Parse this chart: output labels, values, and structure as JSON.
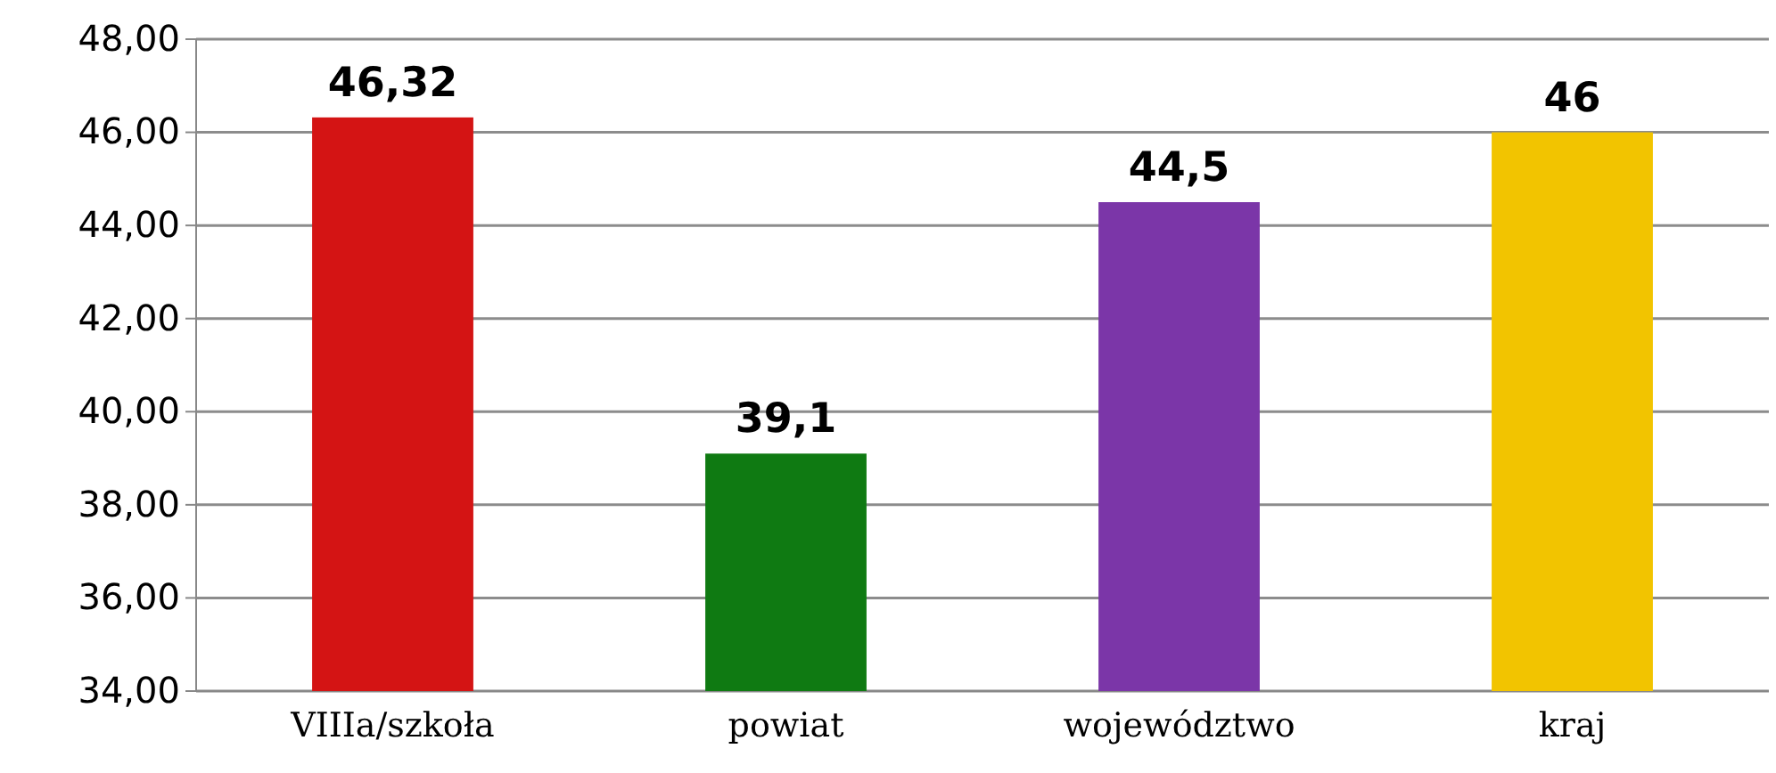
{
  "chart_data": {
    "type": "bar",
    "categories": [
      "VIIIa/szkoła",
      "powiat",
      "województwo",
      "kraj"
    ],
    "values": [
      46.32,
      39.1,
      44.5,
      46
    ],
    "colors": [
      "#d41414",
      "#0f7a12",
      "#7b36a8",
      "#f2c400"
    ],
    "value_labels": [
      "46,32",
      "39,1",
      "44,5",
      "46"
    ],
    "ylim": [
      34,
      48
    ],
    "yticks": [
      {
        "value": 34,
        "label": "34,00"
      },
      {
        "value": 36,
        "label": "36,00"
      },
      {
        "value": 38,
        "label": "38,00"
      },
      {
        "value": 40,
        "label": "40,00"
      },
      {
        "value": 42,
        "label": "42,00"
      },
      {
        "value": 44,
        "label": "44,00"
      },
      {
        "value": 46,
        "label": "46,00"
      },
      {
        "value": 48,
        "label": "48,00"
      }
    ],
    "grid": "y"
  }
}
